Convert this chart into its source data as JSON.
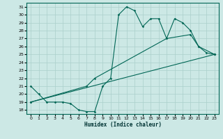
{
  "xlabel": "Humidex (Indice chaleur)",
  "bg_color": "#cce8e5",
  "line_color": "#006655",
  "grid_color": "#aacfcb",
  "xlim": [
    -0.5,
    23.5
  ],
  "ylim": [
    17.5,
    31.5
  ],
  "xticks": [
    0,
    1,
    2,
    3,
    4,
    5,
    6,
    7,
    8,
    9,
    10,
    11,
    12,
    13,
    14,
    15,
    16,
    17,
    18,
    19,
    20,
    21,
    22,
    23
  ],
  "yticks": [
    18,
    19,
    20,
    21,
    22,
    23,
    24,
    25,
    26,
    27,
    28,
    29,
    30,
    31
  ],
  "line1_x": [
    0,
    1,
    2,
    3,
    4,
    5,
    6,
    7,
    8,
    9,
    10,
    11,
    12,
    13,
    14,
    15,
    16,
    17,
    18,
    19,
    20,
    21,
    22,
    23
  ],
  "line1_y": [
    21,
    20,
    19,
    19,
    19,
    18.8,
    18,
    17.8,
    17.8,
    21,
    22,
    30,
    31,
    30.5,
    28.5,
    29.5,
    29.5,
    27,
    29.5,
    29,
    28,
    26,
    25.2,
    25
  ],
  "line2_x": [
    0,
    23
  ],
  "line2_y": [
    19,
    25
  ],
  "line3_x": [
    0,
    7,
    8,
    17,
    20,
    21,
    23
  ],
  "line3_y": [
    19,
    21,
    22,
    27,
    27.5,
    26,
    25
  ]
}
